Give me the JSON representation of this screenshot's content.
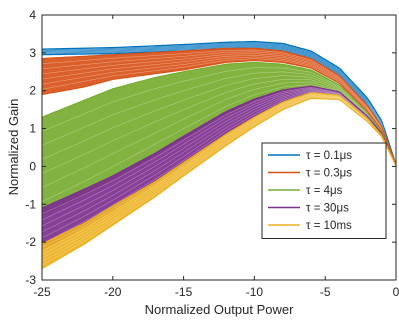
{
  "chart_data": {
    "type": "line",
    "title": "",
    "xlabel": "Normalized Output Power",
    "ylabel": "Normalized Gain",
    "xlim": [
      -25,
      0
    ],
    "ylim": [
      -3,
      4
    ],
    "xticks": [
      -25,
      -20,
      -15,
      -10,
      -5,
      0
    ],
    "yticks": [
      -3,
      -2,
      -1,
      0,
      1,
      2,
      3,
      4
    ],
    "xtick_labels": [
      "-25",
      "-20",
      "-15",
      "-10",
      "-5",
      "0"
    ],
    "ytick_labels": [
      "-3",
      "-2",
      "-1",
      "0",
      "1",
      "2",
      "3",
      "4"
    ],
    "grid": false,
    "legend_position": "right",
    "series": [
      {
        "name": "τ = 0.1μs",
        "legend_label": "τ = 0.1μs",
        "color": "#0072BD",
        "upper": {
          "x": [
            -25,
            -20,
            -15,
            -12,
            -10,
            -8,
            -6,
            -4,
            -2,
            -1,
            0
          ],
          "y": [
            3.1,
            3.14,
            3.22,
            3.28,
            3.3,
            3.25,
            3.05,
            2.6,
            1.8,
            1.2,
            0.05
          ]
        },
        "lower": {
          "x": [
            -25,
            -20,
            -15,
            -12,
            -10,
            -8,
            -6,
            -4,
            -2,
            -1,
            0
          ],
          "y": [
            2.95,
            2.98,
            3.05,
            3.1,
            3.12,
            3.05,
            2.85,
            2.4,
            1.6,
            1.05,
            0.02
          ]
        }
      },
      {
        "name": "τ = 0.3μs",
        "legend_label": "τ = 0.3μs",
        "color": "#D95319",
        "upper": {
          "x": [
            -25,
            -20,
            -15,
            -12,
            -10,
            -8,
            -6,
            -4,
            -2,
            -1,
            0
          ],
          "y": [
            2.85,
            2.95,
            3.05,
            3.12,
            3.12,
            3.05,
            2.85,
            2.4,
            1.6,
            1.05,
            0.05
          ]
        },
        "lower": {
          "x": [
            -25,
            -22,
            -20,
            -17,
            -15,
            -12,
            -10,
            -8,
            -6,
            -4,
            -2,
            -1,
            0
          ],
          "y": [
            1.9,
            2.1,
            2.3,
            2.45,
            2.55,
            2.75,
            2.8,
            2.75,
            2.6,
            2.2,
            1.45,
            0.95,
            0.02
          ]
        }
      },
      {
        "name": "τ = 4μs",
        "legend_label": "τ = 4μs",
        "color": "#77AC30",
        "upper": {
          "x": [
            -25,
            -22,
            -20,
            -17,
            -15,
            -12,
            -10,
            -8,
            -6,
            -4,
            -2,
            -1,
            0
          ],
          "y": [
            1.3,
            1.75,
            2.05,
            2.35,
            2.5,
            2.7,
            2.75,
            2.7,
            2.55,
            2.15,
            1.4,
            0.9,
            0.02
          ]
        },
        "lower": {
          "x": [
            -25,
            -22,
            -20,
            -17,
            -15,
            -12,
            -10,
            -8,
            -6,
            -4,
            -2,
            -1,
            0
          ],
          "y": [
            -1.3,
            -0.75,
            -0.35,
            0.3,
            0.75,
            1.4,
            1.75,
            2.0,
            2.1,
            1.95,
            1.3,
            0.85,
            0.02
          ]
        }
      },
      {
        "name": "τ = 30μs",
        "legend_label": "τ = 30μs",
        "color": "#7E2F8E",
        "upper": {
          "x": [
            -25,
            -22,
            -20,
            -17,
            -15,
            -12,
            -10,
            -8,
            -6,
            -4,
            -2,
            -1,
            0
          ],
          "y": [
            -1.1,
            -0.6,
            -0.25,
            0.35,
            0.8,
            1.45,
            1.78,
            2.02,
            2.12,
            1.97,
            1.32,
            0.86,
            0.02
          ]
        },
        "lower": {
          "x": [
            -25,
            -22,
            -20,
            -17,
            -15,
            -12,
            -10,
            -8,
            -6,
            -4,
            -2,
            -1,
            0
          ],
          "y": [
            -2.2,
            -1.6,
            -1.15,
            -0.45,
            0.05,
            0.85,
            1.3,
            1.7,
            1.95,
            1.87,
            1.25,
            0.82,
            0.02
          ]
        }
      },
      {
        "name": "τ = 10ms",
        "legend_label": "τ = 10ms",
        "color": "#EDB120",
        "upper": {
          "x": [
            -25,
            -22,
            -20,
            -17,
            -15,
            -12,
            -10,
            -8,
            -6,
            -4,
            -2,
            -1,
            0
          ],
          "y": [
            -2.05,
            -1.5,
            -1.05,
            -0.4,
            0.1,
            0.85,
            1.3,
            1.7,
            1.95,
            1.88,
            1.25,
            0.82,
            0.02
          ]
        },
        "lower": {
          "x": [
            -25,
            -22,
            -20,
            -17,
            -15,
            -12,
            -10,
            -8,
            -6,
            -4,
            -2,
            -1,
            0
          ],
          "y": [
            -2.7,
            -2.05,
            -1.55,
            -0.8,
            -0.25,
            0.55,
            1.05,
            1.5,
            1.8,
            1.77,
            1.18,
            0.78,
            0.02
          ]
        }
      }
    ]
  }
}
